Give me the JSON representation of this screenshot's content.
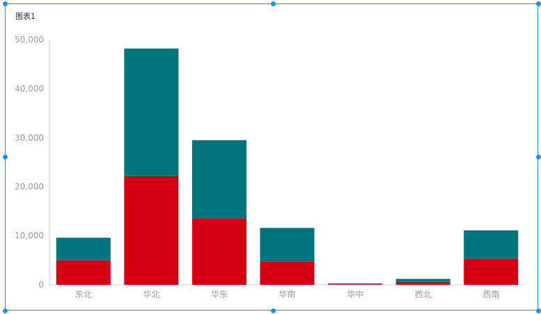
{
  "chart_data": {
    "type": "bar",
    "stacked": true,
    "title": "图表1",
    "xlabel": "",
    "ylabel": "",
    "categories": [
      "东北",
      "华北",
      "华东",
      "华南",
      "华中",
      "西北",
      "西南"
    ],
    "series": [
      {
        "values": [
          5000,
          22200,
          13500,
          4700,
          120,
          600,
          5300
        ],
        "color": "#d50012"
      },
      {
        "values": [
          4600,
          26000,
          16000,
          6900,
          150,
          600,
          5800
        ],
        "color": "#00767c"
      }
    ],
    "ylim": [
      0,
      50000
    ],
    "yticks": [
      "50,000",
      "40,000",
      "30,000",
      "20,000",
      "10,000",
      "0"
    ],
    "grid": false,
    "legend": "none"
  },
  "colors": {
    "selection": "#1890ff",
    "axis": "#c8c8c8",
    "tick_label": "#999999"
  }
}
